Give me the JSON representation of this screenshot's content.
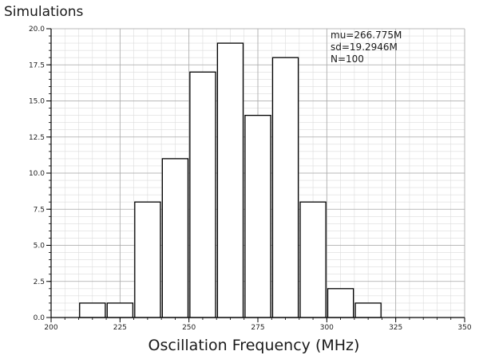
{
  "chart_data": {
    "type": "bar",
    "title": "Simulations",
    "xlabel": "Oscillation Frequency (MHz)",
    "ylabel": "",
    "xlim": [
      200,
      350
    ],
    "ylim": [
      0,
      20
    ],
    "bin_width": 10,
    "bins": [
      {
        "center": 215,
        "count": 1
      },
      {
        "center": 225,
        "count": 1
      },
      {
        "center": 235,
        "count": 8
      },
      {
        "center": 245,
        "count": 11
      },
      {
        "center": 255,
        "count": 17
      },
      {
        "center": 265,
        "count": 19
      },
      {
        "center": 275,
        "count": 14
      },
      {
        "center": 285,
        "count": 18
      },
      {
        "center": 295,
        "count": 8
      },
      {
        "center": 305,
        "count": 2
      },
      {
        "center": 315,
        "count": 1
      }
    ],
    "x_ticks": [
      "200",
      "225",
      "250",
      "275",
      "300",
      "325",
      "350"
    ],
    "y_ticks": [
      "0.0",
      "2.5",
      "5.0",
      "7.5",
      "10.0",
      "12.5",
      "15.0",
      "17.5",
      "20.0"
    ],
    "annotations": [
      "mu=266.775M",
      "sd=19.2946M",
      "N=100"
    ],
    "grid": true,
    "colors": {
      "bar_fill": "#ffffff",
      "bar_stroke": "#000000",
      "grid_major": "#a8a8a8",
      "grid_minor": "#dcdcdc",
      "axis": "#000000"
    }
  }
}
